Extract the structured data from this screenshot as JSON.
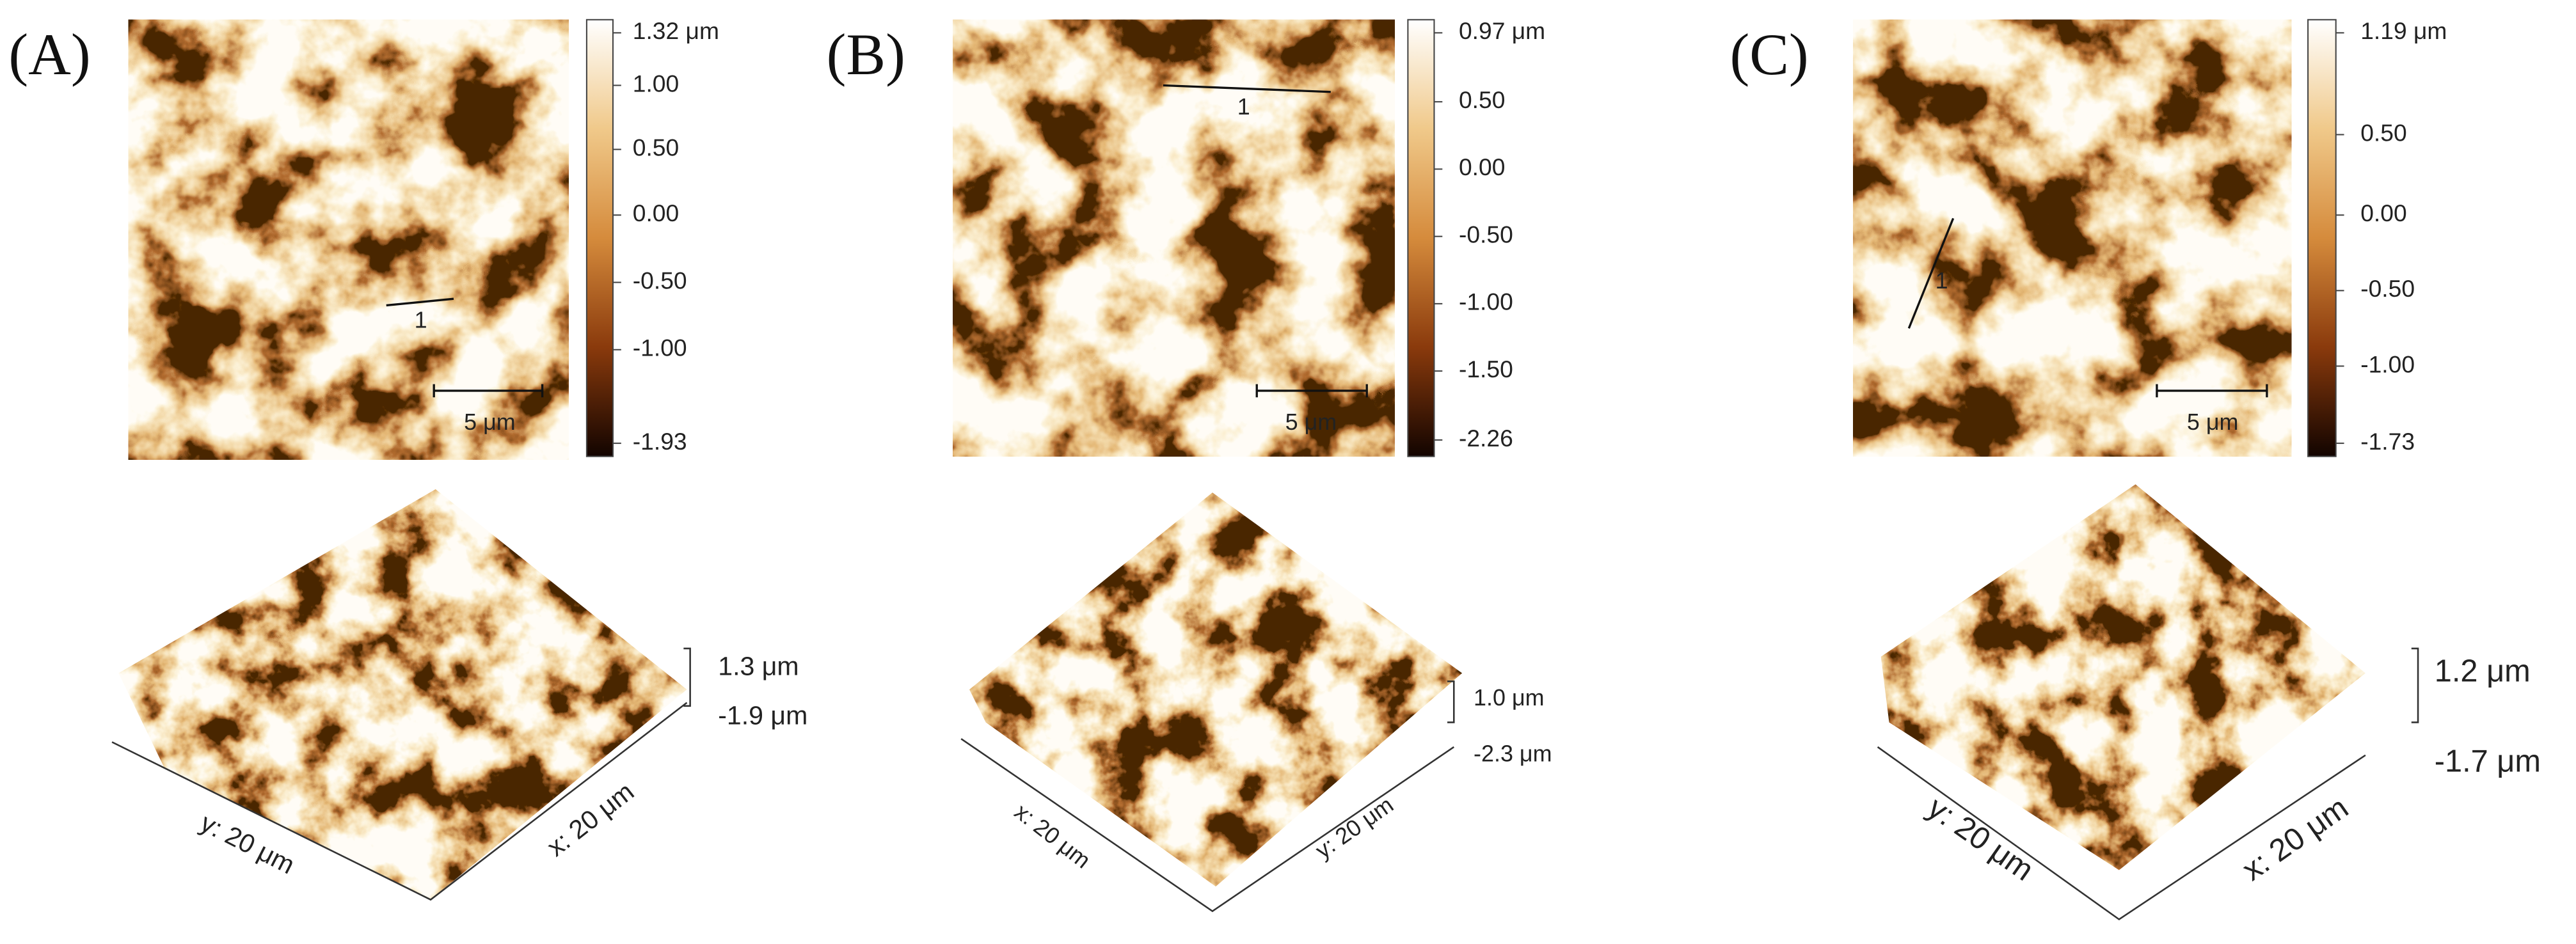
{
  "panels": [
    {
      "label": "(A)",
      "profile_label": "1",
      "scale_bar": "5 μm",
      "colorbar_ticks": [
        "1.32 μm",
        "1.00",
        "0.50",
        "0.00",
        "-0.50",
        "-1.00",
        "-1.93"
      ],
      "z_max": "1.3 μm",
      "z_min": "-1.9 μm",
      "axis_left": "y: 20 μm",
      "axis_right": "x: 20 μm"
    },
    {
      "label": "(B)",
      "profile_label": "1",
      "scale_bar": "5 μm",
      "colorbar_ticks": [
        "0.97 μm",
        "0.50",
        "0.00",
        "-0.50",
        "-1.00",
        "-1.50",
        "-2.26"
      ],
      "z_max": "1.0 μm",
      "z_min": "-2.3 μm",
      "axis_left": "x: 20 μm",
      "axis_right": "y: 20 μm"
    },
    {
      "label": "(C)",
      "profile_label": "1",
      "scale_bar": "5 μm",
      "colorbar_ticks": [
        "1.19 μm",
        "0.50",
        "0.00",
        "-0.50",
        "-1.00",
        "-1.73"
      ],
      "z_max": "1.2 μm",
      "z_min": "-1.7 μm",
      "axis_left": "y: 20 μm",
      "axis_right": "x: 20 μm"
    }
  ]
}
